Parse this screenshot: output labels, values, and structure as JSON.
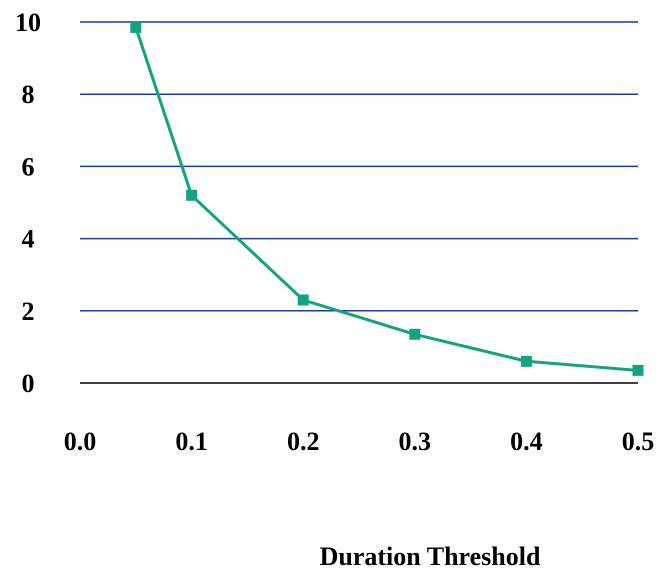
{
  "chart_data": {
    "type": "line",
    "title": "",
    "xlabel": "Duration Threshold",
    "ylabel": "",
    "x_ticks": [
      "0.0",
      "0.1",
      "0.2",
      "0.3",
      "0.4",
      "0.5"
    ],
    "y_ticks": [
      "0",
      "2",
      "4",
      "6",
      "8",
      "10"
    ],
    "xlim": [
      0.0,
      0.5
    ],
    "ylim": [
      0,
      10
    ],
    "grid": "horizontal",
    "series": [
      {
        "x": [
          0.05,
          0.1,
          0.2,
          0.3,
          0.4,
          0.5
        ],
        "y": [
          9.85,
          5.2,
          2.3,
          1.35,
          0.6,
          0.35
        ]
      }
    ],
    "colors": {
      "series": "#12a383",
      "grid": "#1a3f8f",
      "axis": "#000000"
    }
  }
}
